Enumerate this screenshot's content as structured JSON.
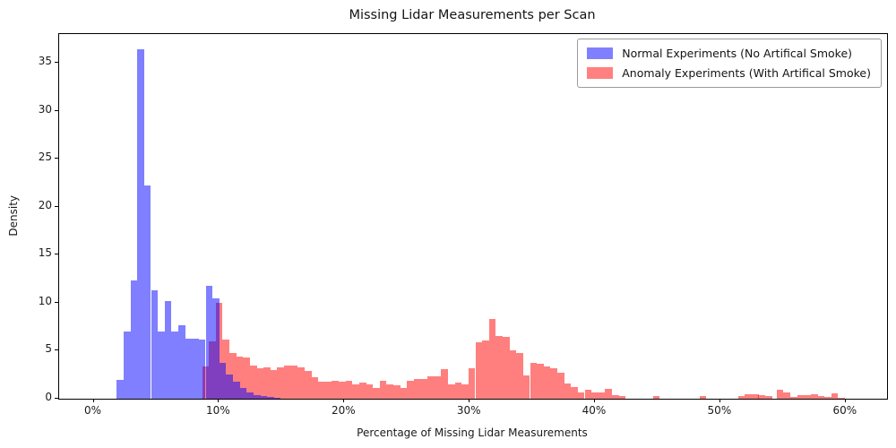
{
  "title": "Missing Lidar Measurements per Scan",
  "xlabel": "Percentage of Missing Lidar Measurements",
  "ylabel": "Density",
  "legend": [
    {
      "label": "Normal Experiments (No Artifical Smoke)",
      "swatch_color": "#8080ff"
    },
    {
      "label": "Anomaly Experiments (With Artifical Smoke)",
      "swatch_color": "#ff8080"
    }
  ],
  "chart_data": {
    "type": "bar",
    "subtype": "overlapping-histograms",
    "title": "Missing Lidar Measurements per Scan",
    "xlabel": "Percentage of Missing Lidar Measurements",
    "ylabel": "Density",
    "xlim": [
      -2.75,
      63.3
    ],
    "ylim": [
      0,
      38
    ],
    "grid": false,
    "legend_position": "upper-right",
    "x_ticks": [
      {
        "p": 0,
        "label": "0%"
      },
      {
        "p": 10,
        "label": "10%"
      },
      {
        "p": 20,
        "label": "20%"
      },
      {
        "p": 30,
        "label": "30%"
      },
      {
        "p": 40,
        "label": "40%"
      },
      {
        "p": 50,
        "label": "50%"
      },
      {
        "p": 60,
        "label": "60%"
      }
    ],
    "y_ticks": [
      {
        "v": 0,
        "label": "0"
      },
      {
        "v": 5,
        "label": "5"
      },
      {
        "v": 10,
        "label": "10"
      },
      {
        "v": 15,
        "label": "15"
      },
      {
        "v": 20,
        "label": "20"
      },
      {
        "v": 25,
        "label": "25"
      },
      {
        "v": 30,
        "label": "30"
      },
      {
        "v": 35,
        "label": "35"
      }
    ],
    "series": [
      {
        "name": "Normal Experiments (No Artifical Smoke)",
        "fill": "rgba(0,0,255,0.5)",
        "bin_width": 0.545,
        "bars": [
          {
            "p": 1.85,
            "h": 2.0
          },
          {
            "p": 2.39,
            "h": 7.0
          },
          {
            "p": 2.94,
            "h": 12.3
          },
          {
            "p": 3.49,
            "h": 36.4
          },
          {
            "p": 4.03,
            "h": 22.2
          },
          {
            "p": 4.58,
            "h": 11.3
          },
          {
            "p": 5.12,
            "h": 7.0
          },
          {
            "p": 5.66,
            "h": 10.2
          },
          {
            "p": 6.21,
            "h": 7.0
          },
          {
            "p": 6.76,
            "h": 7.7
          },
          {
            "p": 7.3,
            "h": 6.3
          },
          {
            "p": 7.85,
            "h": 6.3
          },
          {
            "p": 8.39,
            "h": 6.2
          },
          {
            "p": 8.94,
            "h": 11.8
          },
          {
            "p": 9.49,
            "h": 10.5
          },
          {
            "p": 10.03,
            "h": 3.7
          },
          {
            "p": 10.57,
            "h": 2.5
          },
          {
            "p": 11.12,
            "h": 1.8
          },
          {
            "p": 11.66,
            "h": 1.1
          },
          {
            "p": 12.21,
            "h": 0.7
          },
          {
            "p": 12.76,
            "h": 0.4
          },
          {
            "p": 13.3,
            "h": 0.25
          },
          {
            "p": 13.84,
            "h": 0.15
          },
          {
            "p": 14.39,
            "h": 0.1
          }
        ]
      },
      {
        "name": "Anomaly Experiments (With Artifical Smoke)",
        "fill": "rgba(255,0,0,0.5)",
        "bin_width": 0.545,
        "bars": [
          {
            "p": 8.66,
            "h": 3.4
          },
          {
            "p": 9.2,
            "h": 6.0
          },
          {
            "p": 9.75,
            "h": 10.0
          },
          {
            "p": 10.29,
            "h": 6.2
          },
          {
            "p": 10.84,
            "h": 4.8
          },
          {
            "p": 11.38,
            "h": 4.4
          },
          {
            "p": 11.93,
            "h": 4.3
          },
          {
            "p": 12.47,
            "h": 3.5
          },
          {
            "p": 13.02,
            "h": 3.2
          },
          {
            "p": 13.56,
            "h": 3.3
          },
          {
            "p": 14.11,
            "h": 3.0
          },
          {
            "p": 14.65,
            "h": 3.3
          },
          {
            "p": 15.2,
            "h": 3.5
          },
          {
            "p": 15.74,
            "h": 3.5
          },
          {
            "p": 16.29,
            "h": 3.3
          },
          {
            "p": 16.83,
            "h": 2.9
          },
          {
            "p": 17.38,
            "h": 2.2
          },
          {
            "p": 17.92,
            "h": 1.8
          },
          {
            "p": 18.47,
            "h": 1.8
          },
          {
            "p": 19.01,
            "h": 1.9
          },
          {
            "p": 19.56,
            "h": 1.8
          },
          {
            "p": 20.1,
            "h": 1.9
          },
          {
            "p": 20.65,
            "h": 1.5
          },
          {
            "p": 21.19,
            "h": 1.7
          },
          {
            "p": 21.74,
            "h": 1.5
          },
          {
            "p": 22.28,
            "h": 1.1
          },
          {
            "p": 22.83,
            "h": 1.9
          },
          {
            "p": 23.37,
            "h": 1.5
          },
          {
            "p": 23.92,
            "h": 1.4
          },
          {
            "p": 24.46,
            "h": 1.1
          },
          {
            "p": 25.01,
            "h": 1.9
          },
          {
            "p": 25.55,
            "h": 2.1
          },
          {
            "p": 26.1,
            "h": 2.1
          },
          {
            "p": 26.64,
            "h": 2.3
          },
          {
            "p": 27.19,
            "h": 2.3
          },
          {
            "p": 27.73,
            "h": 3.1
          },
          {
            "p": 28.28,
            "h": 1.5
          },
          {
            "p": 28.82,
            "h": 1.7
          },
          {
            "p": 29.37,
            "h": 1.5
          },
          {
            "p": 29.91,
            "h": 3.2
          },
          {
            "p": 30.46,
            "h": 5.9
          },
          {
            "p": 31.0,
            "h": 6.1
          },
          {
            "p": 31.55,
            "h": 8.3
          },
          {
            "p": 32.09,
            "h": 6.5
          },
          {
            "p": 32.64,
            "h": 6.4
          },
          {
            "p": 33.18,
            "h": 5.0
          },
          {
            "p": 33.73,
            "h": 4.8
          },
          {
            "p": 34.27,
            "h": 2.4
          },
          {
            "p": 34.82,
            "h": 3.7
          },
          {
            "p": 35.36,
            "h": 3.6
          },
          {
            "p": 35.91,
            "h": 3.4
          },
          {
            "p": 36.45,
            "h": 3.2
          },
          {
            "p": 37.0,
            "h": 2.7
          },
          {
            "p": 37.54,
            "h": 1.6
          },
          {
            "p": 38.09,
            "h": 1.2
          },
          {
            "p": 38.63,
            "h": 0.7
          },
          {
            "p": 39.18,
            "h": 0.9
          },
          {
            "p": 39.72,
            "h": 0.65
          },
          {
            "p": 40.27,
            "h": 0.7
          },
          {
            "p": 40.81,
            "h": 1.0
          },
          {
            "p": 41.36,
            "h": 0.4
          },
          {
            "p": 41.9,
            "h": 0.25
          },
          {
            "p": 44.63,
            "h": 0.25
          },
          {
            "p": 48.33,
            "h": 0.3
          },
          {
            "p": 51.41,
            "h": 0.3
          },
          {
            "p": 51.95,
            "h": 0.45
          },
          {
            "p": 52.5,
            "h": 0.45
          },
          {
            "p": 53.04,
            "h": 0.4
          },
          {
            "p": 53.59,
            "h": 0.3
          },
          {
            "p": 54.5,
            "h": 0.9
          },
          {
            "p": 55.04,
            "h": 0.65
          },
          {
            "p": 55.59,
            "h": 0.15
          },
          {
            "p": 56.13,
            "h": 0.4
          },
          {
            "p": 56.68,
            "h": 0.4
          },
          {
            "p": 57.22,
            "h": 0.45
          },
          {
            "p": 57.77,
            "h": 0.25
          },
          {
            "p": 58.31,
            "h": 0.15
          },
          {
            "p": 58.86,
            "h": 0.55
          },
          {
            "p": 59.4,
            "h": 0.1
          }
        ]
      }
    ]
  }
}
